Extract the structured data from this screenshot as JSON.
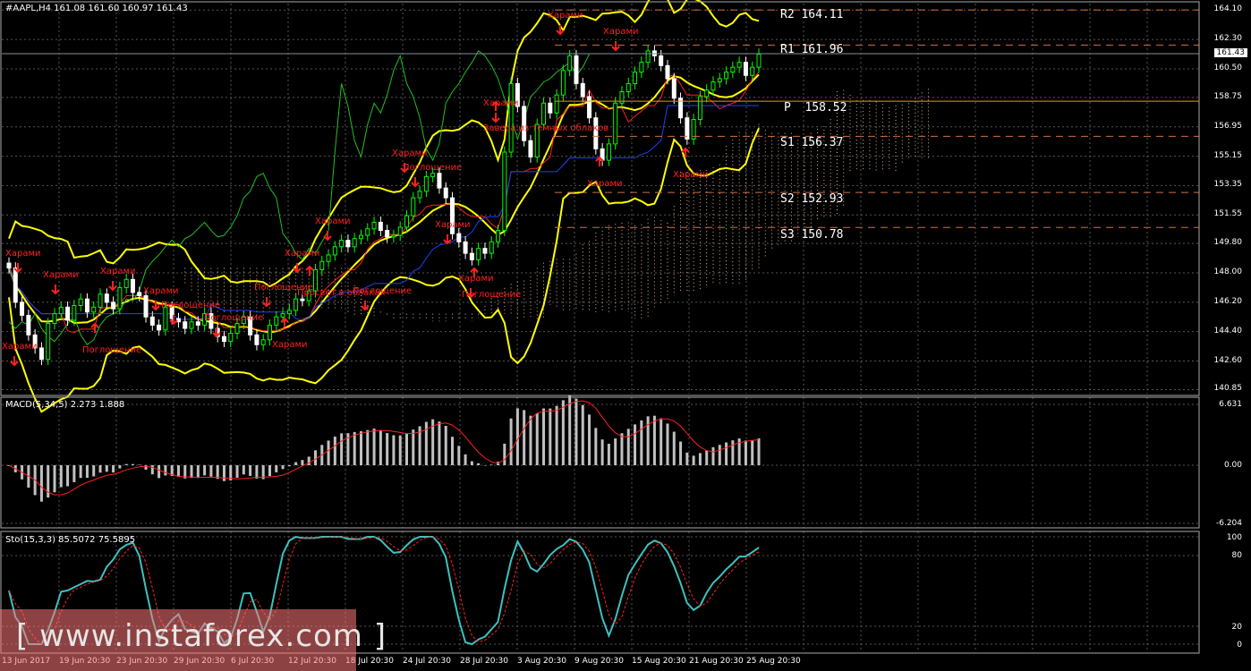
{
  "header": {
    "symbol_info": "#AAPL,H4  161.08 161.60 160.97 161.43",
    "current_price": "161.43"
  },
  "pivots": [
    {
      "label": "R2",
      "value": "164.11"
    },
    {
      "label": "R1",
      "value": "161.96"
    },
    {
      "label": "P",
      "value": "158.52"
    },
    {
      "label": "S1",
      "value": "156.37"
    },
    {
      "label": "S2",
      "value": "152.93"
    },
    {
      "label": "S3",
      "value": "150.78"
    }
  ],
  "price_axis": [
    "164.10",
    "162.30",
    "160.50",
    "158.75",
    "156.95",
    "155.15",
    "153.35",
    "151.55",
    "149.80",
    "148.00",
    "146.20",
    "144.40",
    "142.60",
    "140.85"
  ],
  "macd": {
    "label": "MACD(5,34,5) 2.273 1.888",
    "axis": [
      "6.631",
      "0.00",
      "-6.204"
    ]
  },
  "stoch": {
    "label": "Sto(15,3,3) 85.5072 75.5895",
    "axis": [
      "100",
      "80",
      "20",
      "0"
    ]
  },
  "time_axis": [
    "13 Jun 2017",
    "19 Jun 20:30",
    "23 Jun 20:30",
    "29 Jun 20:30",
    "6 Jul 20:30",
    "12 Jul 20:30",
    "18 Jul 20:30",
    "24 Jul 20:30",
    "28 Jul 20:30",
    "3 Aug 20:30",
    "9 Aug 20:30",
    "15 Aug 20:30",
    "21 Aug 20:30",
    "25 Aug 20:30"
  ],
  "patterns": [
    "Харами",
    "Харами",
    "Харами",
    "Харами",
    "Поглощение",
    "Поглощение",
    "Поглощение",
    "Харами",
    "Поглощение",
    "Харами",
    "Просвет в облаках",
    "Харами",
    "Поглощение",
    "Харами",
    "Поглощение",
    "Харами",
    "Харами",
    "Поглощение",
    "Харами",
    "Завеса из тёмных облаков",
    "Харами",
    "Харами",
    "Харами",
    "Харами",
    "Харами"
  ],
  "watermark": "[ www.instaforex.com ]",
  "colors": {
    "background": "#000000",
    "candle_up": "#00ff00",
    "candle_down": "#ffffff",
    "bollinger": "#ffff00",
    "grid": "#4a4a4a",
    "pattern": "#ff2020",
    "stoch_main": "#40c0c0",
    "stoch_signal": "#ff2020",
    "macd_hist": "#c0c0c0"
  }
}
